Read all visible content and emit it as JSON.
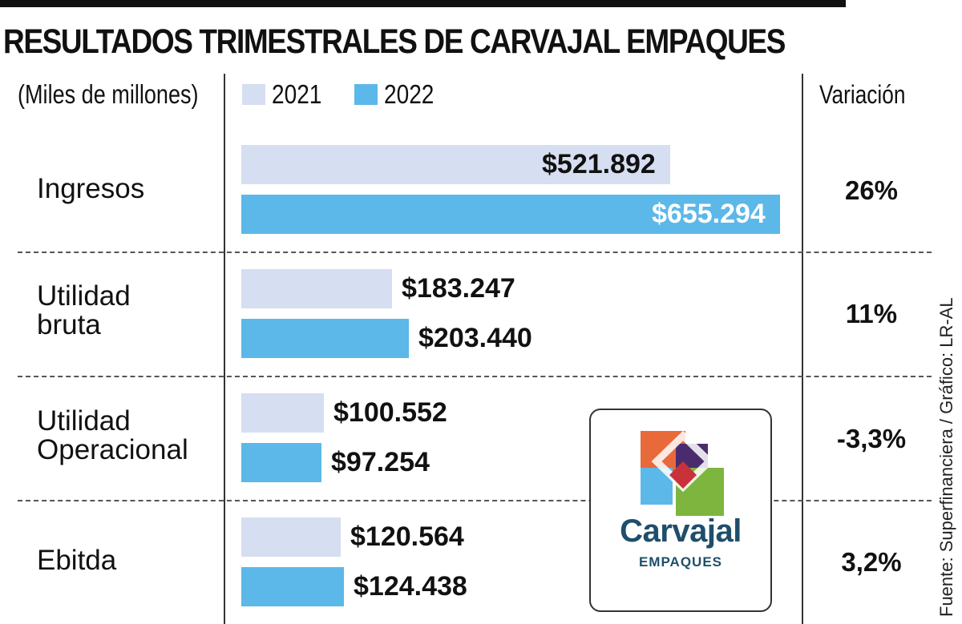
{
  "colors": {
    "y2021": "#d6def1",
    "y2022": "#5cb8e8",
    "ink": "#111111",
    "white_label": "#ffffff"
  },
  "chart_data": {
    "type": "bar",
    "orientation": "horizontal",
    "title": "RESULTADOS TRIMESTRALES DE CARVAJAL EMPAQUES",
    "units": "(Miles de millones)",
    "variation_header": "Variación",
    "categories": [
      "Ingresos",
      "Utilidad\nbruta",
      "Utilidad\nOperacional",
      "Ebitda"
    ],
    "series": [
      {
        "name": "2021",
        "values": [
          521.892,
          183.247,
          100.552,
          120.564
        ],
        "labels": [
          "$521.892",
          "$183.247",
          "$100.552",
          "$120.564"
        ]
      },
      {
        "name": "2022",
        "values": [
          655.294,
          203.44,
          97.254,
          124.438
        ],
        "labels": [
          "$655.294",
          "$203.440",
          "$97.254",
          "$124.438"
        ]
      }
    ],
    "variation": [
      "26%",
      "11%",
      "-3,3%",
      "3,2%"
    ],
    "xlim": [
      0,
      655.294
    ],
    "legend_position": "top",
    "grid": false,
    "source": "Fuente: Superfinanciera / Gráfico: LR-AL"
  },
  "logo": {
    "name": "Carvajal",
    "subtitle": "EMPAQUES"
  }
}
